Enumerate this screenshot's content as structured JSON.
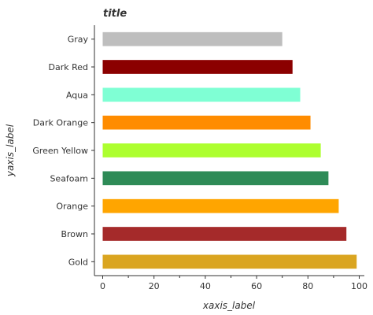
{
  "chart_data": {
    "type": "bar",
    "orientation": "horizontal",
    "title": "title",
    "xlabel": "xaxis_label",
    "ylabel": "yaxis_label",
    "categories": [
      "Gray",
      "Dark Red",
      "Aqua",
      "Dark Orange",
      "Green Yellow",
      "Seafoam",
      "Orange",
      "Brown",
      "Gold"
    ],
    "values": [
      70,
      74,
      77,
      81,
      85,
      88,
      92,
      95,
      99
    ],
    "colors": [
      "#bebebe",
      "#8b0000",
      "#7fffd4",
      "#ff8c00",
      "#adff2f",
      "#2e8b57",
      "#ffa500",
      "#a52a2a",
      "#daa520"
    ],
    "xlim": [
      0,
      100
    ],
    "xticks": [
      0,
      20,
      40,
      60,
      80,
      100
    ],
    "xtick_labels": [
      "0",
      "20",
      "40",
      "60",
      "80",
      "100"
    ],
    "grid": false,
    "legend": "none"
  }
}
